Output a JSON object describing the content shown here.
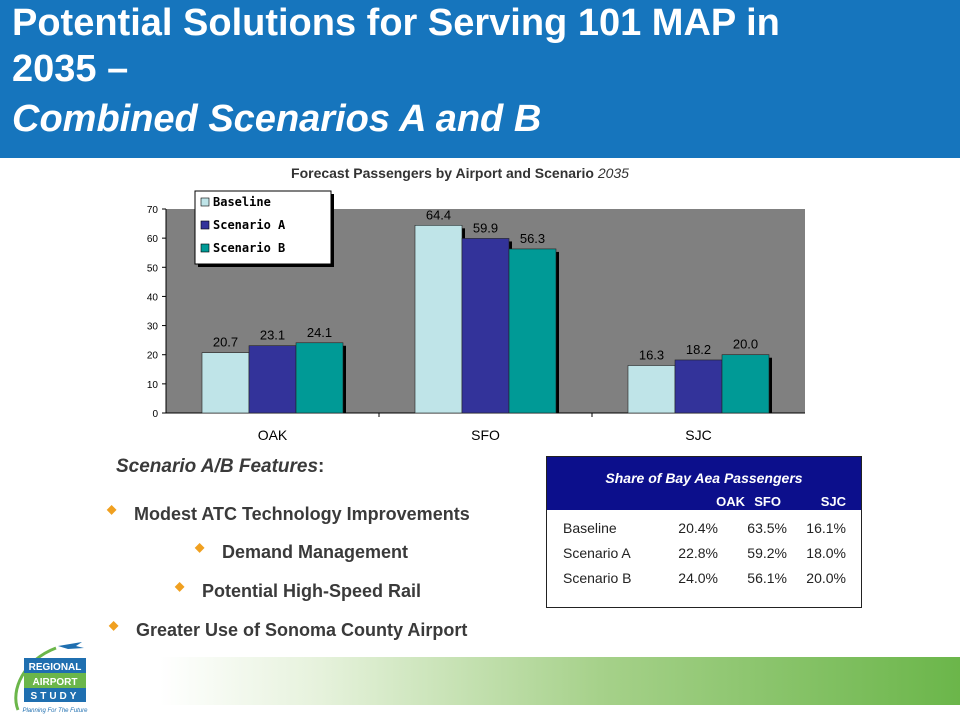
{
  "header": {
    "line1": "Potential Solutions for Serving 101 MAP in",
    "line2": "2035 –",
    "line3": "Combined Scenarios A and B"
  },
  "chart_title": {
    "main": "Forecast Passengers by Airport and Scenario",
    "year": "2035"
  },
  "chart_data": {
    "type": "bar",
    "title": "Forecast Passengers by Airport and Scenario 2035",
    "categories": [
      "OAK",
      "SFO",
      "SJC"
    ],
    "series": [
      {
        "name": "Baseline",
        "values": [
          20.7,
          64.4,
          16.3
        ],
        "color": "#bfe4e8"
      },
      {
        "name": "Scenario A",
        "values": [
          23.1,
          59.9,
          18.2
        ],
        "color": "#33339a"
      },
      {
        "name": "Scenario B",
        "values": [
          24.1,
          56.3,
          20.0
        ],
        "color": "#009a96"
      }
    ],
    "data_labels": [
      [
        "20.7",
        "64.4",
        "16.3"
      ],
      [
        "23.1",
        "59.9",
        "18.2"
      ],
      [
        "24.1",
        "56.3",
        "20.0"
      ]
    ],
    "ylim": [
      0,
      70
    ],
    "yticks": [
      "0",
      "10",
      "20",
      "30",
      "40",
      "50",
      "60",
      "70"
    ],
    "grid": false,
    "legend": "top-left",
    "plot_background": "#808080"
  },
  "features": {
    "title": "Scenario A/B Features",
    "title_suffix": ":",
    "items": [
      "Modest ATC Technology Improvements",
      "Demand Management",
      "Potential High-Speed Rail",
      "Greater Use of Sonoma County Airport"
    ]
  },
  "share_table": {
    "title": "Share of Bay Aea Passengers",
    "columns": [
      "OAK",
      "SFO",
      "SJC"
    ],
    "rows": [
      {
        "label": "Baseline",
        "values": [
          "20.4%",
          "63.5%",
          "16.1%"
        ]
      },
      {
        "label": "Scenario A",
        "values": [
          "22.8%",
          "59.2%",
          "18.0%"
        ]
      },
      {
        "label": "Scenario B",
        "values": [
          "24.0%",
          "56.1%",
          "20.0%"
        ]
      }
    ]
  },
  "logo": {
    "line1": "REGIONAL",
    "line2": "AIRPORT",
    "line3": "STUDY",
    "tagline": "Planning For The Future"
  },
  "colors": {
    "header_bg": "#1675bd",
    "table_header_bg": "#0c0f8c",
    "bullet": "#f0a020"
  }
}
